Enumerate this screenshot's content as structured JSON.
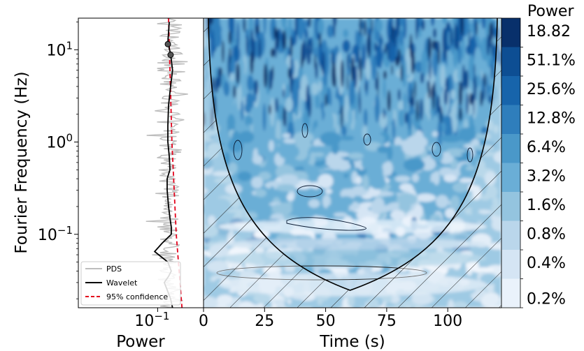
{
  "chart_data": [
    {
      "type": "line",
      "panel": "global-spectrum",
      "ylabel": "Fourier Frequency (Hz)",
      "xlabel": "Power",
      "yscale": "log",
      "ylim": [
        0.016,
        22
      ],
      "xscale": "log",
      "y_ticks": [
        {
          "value": 10,
          "label": "10^1",
          "base": "10",
          "exp": "1"
        },
        {
          "value": 1,
          "label": "10^0",
          "base": "10",
          "exp": "0"
        },
        {
          "value": 0.1,
          "label": "10^-1",
          "base": "10",
          "exp": "−1"
        }
      ],
      "x_ticks": [
        {
          "value": 0.1,
          "label": "10^-1",
          "base": "10",
          "exp": "−1"
        }
      ],
      "legend": {
        "placement": "bottom-left",
        "entries": [
          {
            "name": "PDS",
            "color": "#bdbdbd",
            "style": "solid"
          },
          {
            "name": "Wavelet",
            "color": "#000000",
            "style": "solid"
          },
          {
            "name": "95% confidence",
            "color": "#e3001b",
            "style": "dashed"
          }
        ]
      },
      "series": [
        {
          "name": "Wavelet",
          "points": [
            {
              "f": 20,
              "p": 0.085
            },
            {
              "f": 12,
              "p": 0.083
            },
            {
              "f": 9,
              "p": 0.087
            },
            {
              "f": 6,
              "p": 0.09
            },
            {
              "f": 4,
              "p": 0.087
            },
            {
              "f": 2.5,
              "p": 0.084
            },
            {
              "f": 1.5,
              "p": 0.083
            },
            {
              "f": 1.0,
              "p": 0.083
            },
            {
              "f": 0.7,
              "p": 0.085
            },
            {
              "f": 0.5,
              "p": 0.086
            },
            {
              "f": 0.4,
              "p": 0.082
            },
            {
              "f": 0.3,
              "p": 0.082
            },
            {
              "f": 0.2,
              "p": 0.084
            },
            {
              "f": 0.15,
              "p": 0.086
            },
            {
              "f": 0.12,
              "p": 0.088
            },
            {
              "f": 0.1,
              "p": 0.088
            },
            {
              "f": 0.08,
              "p": 0.075
            },
            {
              "f": 0.065,
              "p": 0.066
            },
            {
              "f": 0.05,
              "p": 0.083
            },
            {
              "f": 0.04,
              "p": 0.088
            },
            {
              "f": 0.035,
              "p": 0.084
            },
            {
              "f": 0.03,
              "p": 0.078
            },
            {
              "f": 0.025,
              "p": 0.082
            },
            {
              "f": 0.02,
              "p": 0.087
            },
            {
              "f": 0.016,
              "p": 0.09
            }
          ]
        },
        {
          "name": "95% confidence",
          "points": [
            {
              "f": 22,
              "p": 0.084
            },
            {
              "f": 1,
              "p": 0.089
            },
            {
              "f": 0.1,
              "p": 0.096
            },
            {
              "f": 0.016,
              "p": 0.106
            }
          ]
        }
      ],
      "significant_points_freq": [
        11.5,
        8.8
      ]
    },
    {
      "type": "heatmap",
      "panel": "wavelet-power-spectrum",
      "xlabel": "Time (s)",
      "xlim": [
        0,
        122
      ],
      "x_ticks": [
        0,
        25,
        50,
        75,
        100
      ],
      "yscale": "log",
      "ylim": [
        0.016,
        22
      ],
      "cone_of_influence": true,
      "colorbar": {
        "title": "Power",
        "labels": [
          "18.82",
          "51.1%",
          "25.6%",
          "12.8%",
          "6.4%",
          "3.2%",
          "1.6%",
          "0.8%",
          "0.4%",
          "0.2%"
        ],
        "colors": [
          "#08306b",
          "#0d4e93",
          "#1764ab",
          "#2f7ebc",
          "#4a98c9",
          "#6aaed6",
          "#94c4df",
          "#bad6eb",
          "#d5e5f4",
          "#eaf2fb"
        ]
      }
    }
  ]
}
